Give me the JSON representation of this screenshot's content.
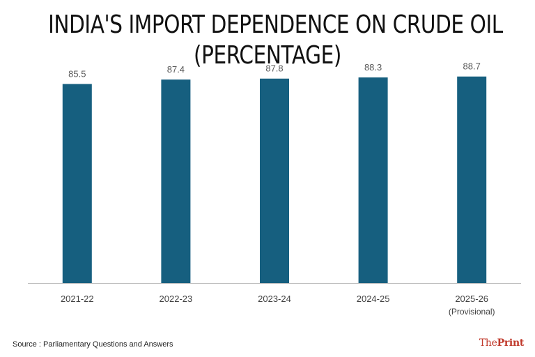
{
  "title_lines": [
    "INDIA'S IMPORT DEPENDENCE ON CRUDE OIL",
    "(PERCENTAGE)"
  ],
  "source": "Source : Parliamentary Questions and Answers",
  "logo": {
    "the": "The",
    "print": "Print"
  },
  "colors": {
    "bar": "#165f7f",
    "axis": "#bfbfbf",
    "label": "#595959",
    "logo": "#c0392b"
  },
  "chart_data": {
    "type": "bar",
    "title": "INDIA'S IMPORT DEPENDENCE ON CRUDE OIL (PERCENTAGE)",
    "categories": [
      "2021-22",
      "2022-23",
      "2023-24",
      "2024-25",
      "2025-26"
    ],
    "category_notes": [
      "",
      "",
      "",
      "",
      "(Provisional)"
    ],
    "values": [
      85.5,
      87.4,
      87.8,
      88.3,
      88.7
    ],
    "data_labels": [
      "85.5",
      "87.4",
      "87.8",
      "88.3",
      "88.7"
    ],
    "xlabel": "",
    "ylabel": "",
    "ylim": [
      0,
      100
    ],
    "grid": false,
    "legend": "none"
  }
}
